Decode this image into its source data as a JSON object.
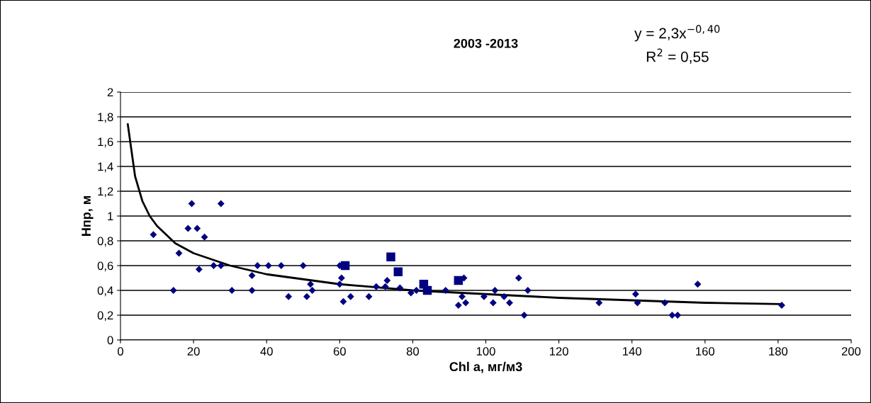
{
  "chart_data": {
    "type": "scatter",
    "title": "2003 -2013",
    "xlabel": "Chl a, мг/м3",
    "ylabel": "Нпр, м",
    "annotations": [
      "y = 2,3x$^{−0,40}$",
      "R$^{2}$ = 0,55"
    ],
    "series": [
      {
        "color": "#000080",
        "marker": "diamond",
        "x": [
          9,
          14.5,
          16,
          18.5,
          19.5,
          21,
          21.5,
          23,
          25.5,
          27.5,
          27.5,
          30.5,
          36,
          36,
          37.5,
          40.5,
          44,
          46,
          50,
          51,
          52,
          52.5,
          60,
          60,
          60.5,
          61,
          63,
          68,
          70,
          72.5,
          73,
          76.5,
          79.5,
          81,
          89,
          92.5,
          93.5,
          94,
          94.5,
          99.5,
          102,
          102.5,
          105,
          106.5,
          109,
          110.5,
          111.5,
          131,
          141,
          141.5,
          149,
          151,
          152.5,
          158,
          181
        ],
        "values": [
          0.85,
          0.4,
          0.7,
          0.9,
          1.1,
          0.9,
          0.57,
          0.83,
          0.6,
          1.1,
          0.6,
          0.4,
          0.52,
          0.4,
          0.6,
          0.6,
          0.6,
          0.35,
          0.6,
          0.35,
          0.45,
          0.4,
          0.6,
          0.45,
          0.5,
          0.31,
          0.35,
          0.35,
          0.43,
          0.43,
          0.48,
          0.42,
          0.38,
          0.4,
          0.4,
          0.28,
          0.35,
          0.5,
          0.3,
          0.35,
          0.3,
          0.4,
          0.35,
          0.3,
          0.5,
          0.2,
          0.4,
          0.3,
          0.37,
          0.3,
          0.3,
          0.2,
          0.2,
          0.45,
          0.28
        ]
      },
      {
        "color": "#000080",
        "marker": "square",
        "x": [
          61.5,
          74,
          76,
          83,
          84,
          92.5
        ],
        "values": [
          0.6,
          0.67,
          0.55,
          0.45,
          0.4,
          0.48
        ]
      },
      {
        "type": "line",
        "color": "#000000",
        "marker": "none",
        "x": [
          2,
          4,
          6,
          8,
          10,
          15,
          20,
          30,
          40,
          60,
          80,
          100,
          120,
          140,
          160,
          181
        ],
        "values": [
          1.74,
          1.32,
          1.12,
          1.0,
          0.92,
          0.78,
          0.7,
          0.6,
          0.53,
          0.45,
          0.4,
          0.37,
          0.34,
          0.32,
          0.3,
          0.29
        ]
      }
    ],
    "xlim": [
      0,
      200
    ],
    "xticks": [
      0,
      20,
      40,
      60,
      80,
      100,
      120,
      140,
      160,
      180,
      200
    ],
    "ylim": [
      0,
      2
    ],
    "yticks": [
      0,
      {
        "value": 0.2,
        "label": "0,2"
      },
      {
        "value": 0.4,
        "label": "0,4"
      },
      {
        "value": 0.6,
        "label": "0,6"
      },
      {
        "value": 0.8,
        "label": "0,8"
      },
      1,
      {
        "value": 1.2,
        "label": "1,2"
      },
      {
        "value": 1.4,
        "label": "1,4"
      },
      {
        "value": 1.6,
        "label": "1,6"
      },
      {
        "value": 1.8,
        "label": "1,8"
      },
      2
    ],
    "grid": "y",
    "legend": false
  }
}
